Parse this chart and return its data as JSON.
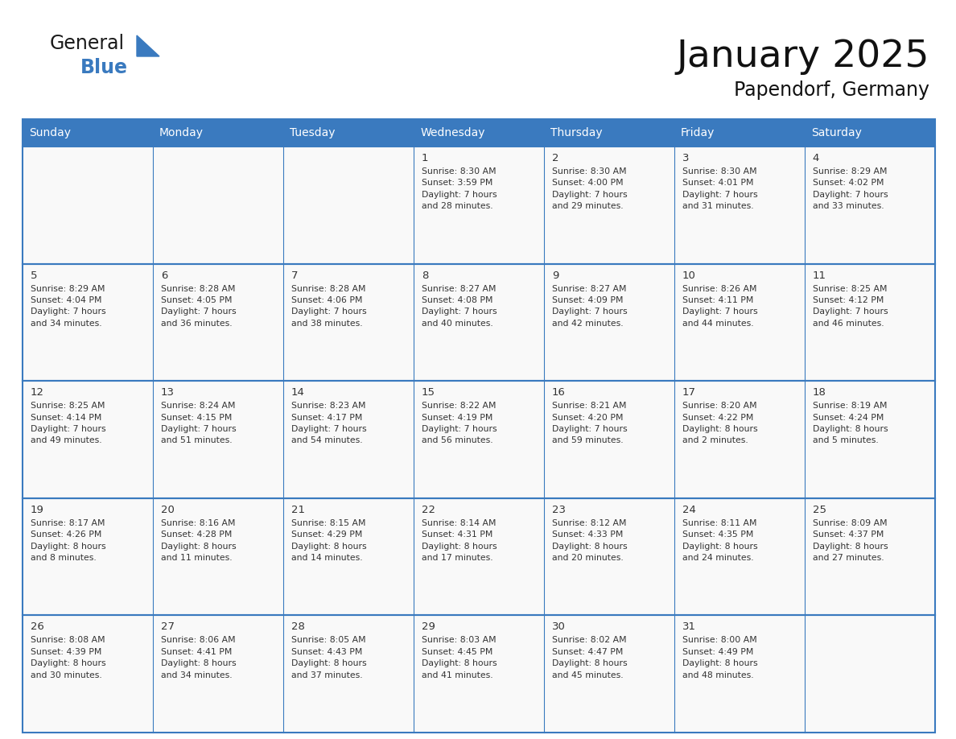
{
  "title": "January 2025",
  "subtitle": "Papendorf, Germany",
  "header_bg": "#3a7abf",
  "header_text_color": "#ffffff",
  "border_color": "#3a7abf",
  "text_color": "#333333",
  "days_of_week": [
    "Sunday",
    "Monday",
    "Tuesday",
    "Wednesday",
    "Thursday",
    "Friday",
    "Saturday"
  ],
  "day_name_fontsize": 10,
  "day_num_fontsize": 9.5,
  "cell_fontsize": 7.8,
  "title_fontsize": 34,
  "subtitle_fontsize": 17,
  "calendar": [
    [
      null,
      null,
      null,
      {
        "day": 1,
        "sunrise": "8:30 AM",
        "sunset": "3:59 PM",
        "daylight": "7 hours\nand 28 minutes."
      },
      {
        "day": 2,
        "sunrise": "8:30 AM",
        "sunset": "4:00 PM",
        "daylight": "7 hours\nand 29 minutes."
      },
      {
        "day": 3,
        "sunrise": "8:30 AM",
        "sunset": "4:01 PM",
        "daylight": "7 hours\nand 31 minutes."
      },
      {
        "day": 4,
        "sunrise": "8:29 AM",
        "sunset": "4:02 PM",
        "daylight": "7 hours\nand 33 minutes."
      }
    ],
    [
      {
        "day": 5,
        "sunrise": "8:29 AM",
        "sunset": "4:04 PM",
        "daylight": "7 hours\nand 34 minutes."
      },
      {
        "day": 6,
        "sunrise": "8:28 AM",
        "sunset": "4:05 PM",
        "daylight": "7 hours\nand 36 minutes."
      },
      {
        "day": 7,
        "sunrise": "8:28 AM",
        "sunset": "4:06 PM",
        "daylight": "7 hours\nand 38 minutes."
      },
      {
        "day": 8,
        "sunrise": "8:27 AM",
        "sunset": "4:08 PM",
        "daylight": "7 hours\nand 40 minutes."
      },
      {
        "day": 9,
        "sunrise": "8:27 AM",
        "sunset": "4:09 PM",
        "daylight": "7 hours\nand 42 minutes."
      },
      {
        "day": 10,
        "sunrise": "8:26 AM",
        "sunset": "4:11 PM",
        "daylight": "7 hours\nand 44 minutes."
      },
      {
        "day": 11,
        "sunrise": "8:25 AM",
        "sunset": "4:12 PM",
        "daylight": "7 hours\nand 46 minutes."
      }
    ],
    [
      {
        "day": 12,
        "sunrise": "8:25 AM",
        "sunset": "4:14 PM",
        "daylight": "7 hours\nand 49 minutes."
      },
      {
        "day": 13,
        "sunrise": "8:24 AM",
        "sunset": "4:15 PM",
        "daylight": "7 hours\nand 51 minutes."
      },
      {
        "day": 14,
        "sunrise": "8:23 AM",
        "sunset": "4:17 PM",
        "daylight": "7 hours\nand 54 minutes."
      },
      {
        "day": 15,
        "sunrise": "8:22 AM",
        "sunset": "4:19 PM",
        "daylight": "7 hours\nand 56 minutes."
      },
      {
        "day": 16,
        "sunrise": "8:21 AM",
        "sunset": "4:20 PM",
        "daylight": "7 hours\nand 59 minutes."
      },
      {
        "day": 17,
        "sunrise": "8:20 AM",
        "sunset": "4:22 PM",
        "daylight": "8 hours\nand 2 minutes."
      },
      {
        "day": 18,
        "sunrise": "8:19 AM",
        "sunset": "4:24 PM",
        "daylight": "8 hours\nand 5 minutes."
      }
    ],
    [
      {
        "day": 19,
        "sunrise": "8:17 AM",
        "sunset": "4:26 PM",
        "daylight": "8 hours\nand 8 minutes."
      },
      {
        "day": 20,
        "sunrise": "8:16 AM",
        "sunset": "4:28 PM",
        "daylight": "8 hours\nand 11 minutes."
      },
      {
        "day": 21,
        "sunrise": "8:15 AM",
        "sunset": "4:29 PM",
        "daylight": "8 hours\nand 14 minutes."
      },
      {
        "day": 22,
        "sunrise": "8:14 AM",
        "sunset": "4:31 PM",
        "daylight": "8 hours\nand 17 minutes."
      },
      {
        "day": 23,
        "sunrise": "8:12 AM",
        "sunset": "4:33 PM",
        "daylight": "8 hours\nand 20 minutes."
      },
      {
        "day": 24,
        "sunrise": "8:11 AM",
        "sunset": "4:35 PM",
        "daylight": "8 hours\nand 24 minutes."
      },
      {
        "day": 25,
        "sunrise": "8:09 AM",
        "sunset": "4:37 PM",
        "daylight": "8 hours\nand 27 minutes."
      }
    ],
    [
      {
        "day": 26,
        "sunrise": "8:08 AM",
        "sunset": "4:39 PM",
        "daylight": "8 hours\nand 30 minutes."
      },
      {
        "day": 27,
        "sunrise": "8:06 AM",
        "sunset": "4:41 PM",
        "daylight": "8 hours\nand 34 minutes."
      },
      {
        "day": 28,
        "sunrise": "8:05 AM",
        "sunset": "4:43 PM",
        "daylight": "8 hours\nand 37 minutes."
      },
      {
        "day": 29,
        "sunrise": "8:03 AM",
        "sunset": "4:45 PM",
        "daylight": "8 hours\nand 41 minutes."
      },
      {
        "day": 30,
        "sunrise": "8:02 AM",
        "sunset": "4:47 PM",
        "daylight": "8 hours\nand 45 minutes."
      },
      {
        "day": 31,
        "sunrise": "8:00 AM",
        "sunset": "4:49 PM",
        "daylight": "8 hours\nand 48 minutes."
      },
      null
    ]
  ],
  "logo_text1": "General",
  "logo_text2": "Blue",
  "logo_color1": "#1a1a1a",
  "logo_color2": "#3a7abf",
  "logo_triangle_color": "#3a7abf"
}
